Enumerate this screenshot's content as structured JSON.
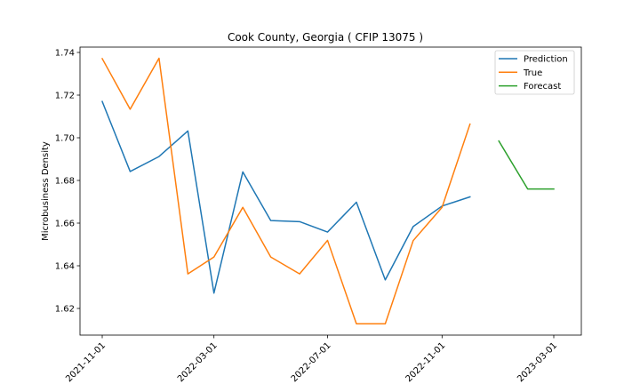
{
  "chart_data": {
    "type": "line",
    "title": "Cook County, Georgia ( CFIP 13075 )",
    "xlabel": "",
    "ylabel": "Microbusiness Density",
    "x_tick_labels": [
      "2021-11-01",
      "2022-03-01",
      "2022-07-01",
      "2022-11-01",
      "2023-03-01"
    ],
    "y_tick_labels": [
      "1.62",
      "1.64",
      "1.66",
      "1.68",
      "1.70",
      "1.72",
      "1.74"
    ],
    "ylim": [
      1.6075,
      1.7425
    ],
    "legend_position": "top-right",
    "grid": false,
    "series": [
      {
        "name": "Prediction",
        "color": "#1f77b4",
        "x": [
          "2021-11-01",
          "2021-12-01",
          "2022-01-01",
          "2022-02-01",
          "2022-03-01",
          "2022-04-01",
          "2022-05-01",
          "2022-06-01",
          "2022-07-01",
          "2022-08-01",
          "2022-09-01",
          "2022-10-01",
          "2022-11-01",
          "2022-12-01"
        ],
        "values": [
          1.717,
          1.6842,
          1.6912,
          1.7032,
          1.6272,
          1.684,
          1.6612,
          1.6607,
          1.6558,
          1.6698,
          1.6334,
          1.6584,
          1.668,
          1.6723
        ]
      },
      {
        "name": "True",
        "color": "#ff7f0e",
        "x": [
          "2021-11-01",
          "2021-12-01",
          "2022-01-01",
          "2022-02-01",
          "2022-03-01",
          "2022-04-01",
          "2022-05-01",
          "2022-06-01",
          "2022-07-01",
          "2022-08-01",
          "2022-09-01",
          "2022-10-01",
          "2022-11-01",
          "2022-12-01"
        ],
        "values": [
          1.7371,
          1.7134,
          1.7373,
          1.6362,
          1.6441,
          1.6674,
          1.6441,
          1.6362,
          1.6519,
          1.6128,
          1.6128,
          1.6518,
          1.6674,
          1.7064
        ]
      },
      {
        "name": "Forecast",
        "color": "#2ca02c",
        "x": [
          "2023-01-01",
          "2023-02-01",
          "2023-03-01"
        ],
        "values": [
          1.6985,
          1.676,
          1.676
        ]
      }
    ]
  }
}
